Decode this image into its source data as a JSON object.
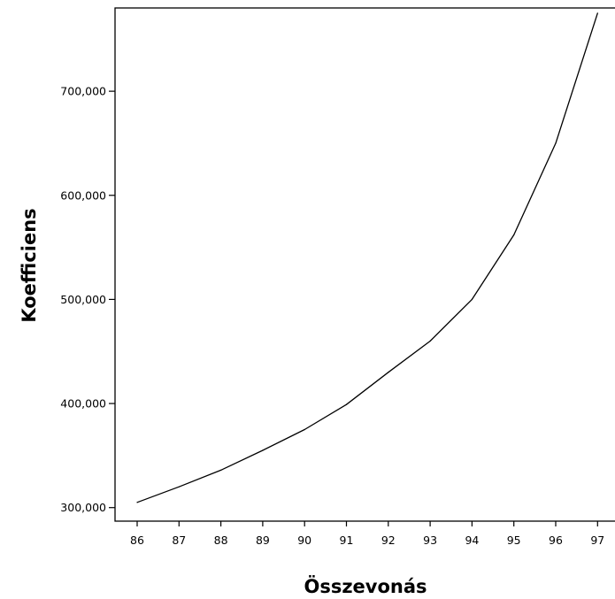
{
  "chart_data": {
    "type": "line",
    "title": "",
    "xlabel": "Összevonás",
    "ylabel": "Koefficiens",
    "x": [
      86,
      87,
      88,
      89,
      90,
      91,
      92,
      93,
      94,
      95,
      96,
      97
    ],
    "x_tick_labels": [
      "86",
      "87",
      "88",
      "89",
      "90",
      "91",
      "92",
      "93",
      "94",
      "95",
      "96",
      "97"
    ],
    "y_ticks": [
      300,
      400,
      500,
      600,
      700
    ],
    "y_tick_labels": [
      "300,000",
      "400,000",
      "500,000",
      "600,000",
      "700,000"
    ],
    "ylim": [
      287,
      780
    ],
    "series": [
      {
        "values": [
          305,
          320,
          336,
          355,
          375,
          399,
          430,
          460,
          500,
          562,
          650,
          775
        ],
        "color": "#000000"
      }
    ],
    "grid": false,
    "legend": "none"
  }
}
